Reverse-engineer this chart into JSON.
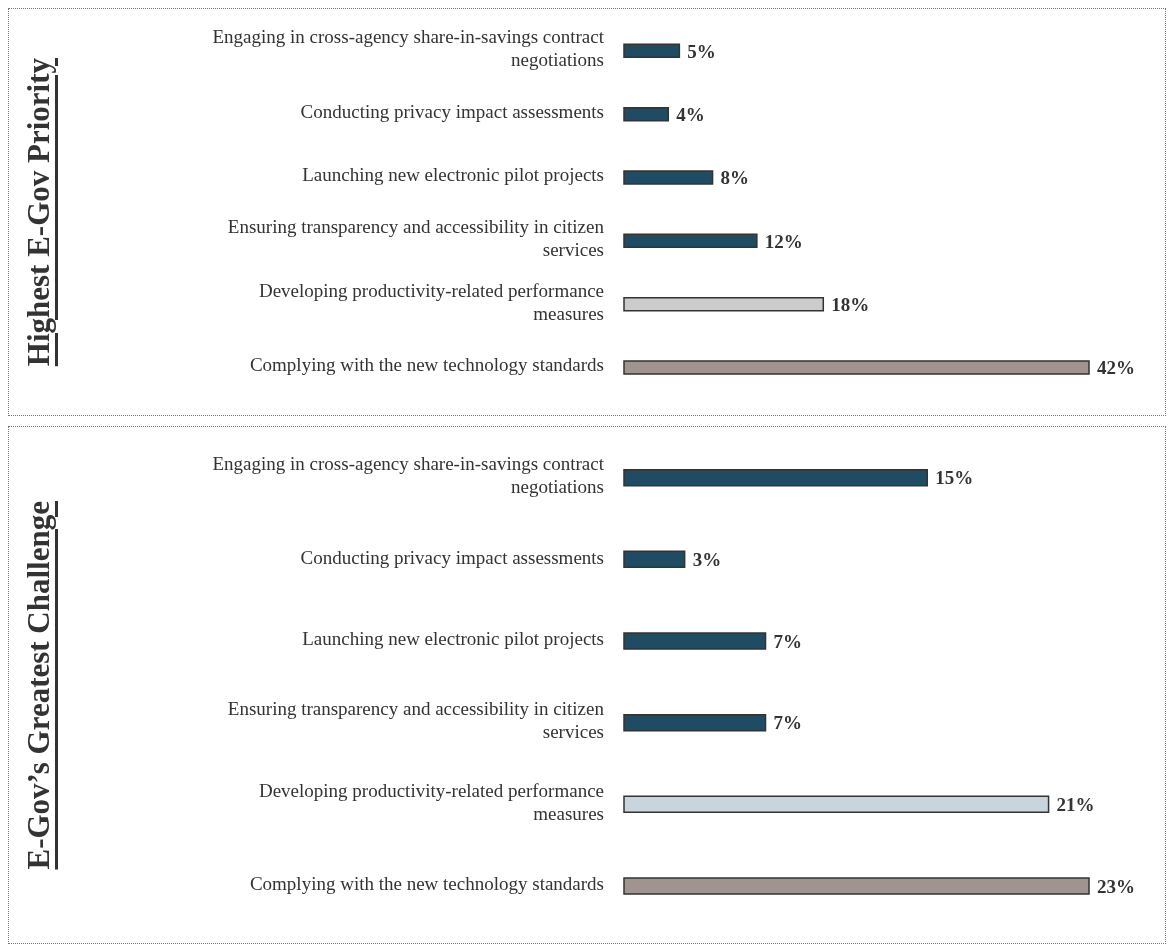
{
  "chart_data": [
    {
      "type": "bar",
      "orientation": "horizontal",
      "title": "Highest E-Gov Priority",
      "categories": [
        "Engaging in cross-agency share-in-savings contract negotiations",
        "Conducting privacy impact assessments",
        "Launching new electronic pilot projects",
        "Ensuring transparency and accessibility in citizen services",
        "Developing productivity-related performance measures",
        "Complying with the new technology standards"
      ],
      "values": [
        5,
        4,
        8,
        12,
        18,
        42
      ],
      "value_labels": [
        "5%",
        "4%",
        "8%",
        "12%",
        "18%",
        "42%"
      ],
      "colors": [
        "#1f4c63",
        "#1f4c63",
        "#1f4c63",
        "#1f4c63",
        "#cccccc",
        "#a09490"
      ]
    },
    {
      "type": "bar",
      "orientation": "horizontal",
      "title": "E-Gov’s Greatest Challenge",
      "categories": [
        "Engaging in cross-agency share-in-savings contract negotiations",
        "Conducting privacy impact assessments",
        "Launching new electronic pilot projects",
        "Ensuring transparency and accessibility in citizen services",
        "Developing productivity-related performance measures",
        "Complying with the new technology standards"
      ],
      "values": [
        15,
        3,
        7,
        7,
        21,
        23
      ],
      "value_labels": [
        "15%",
        "3%",
        "7%",
        "7%",
        "21%",
        "23%"
      ],
      "colors": [
        "#1f4c63",
        "#1f4c63",
        "#1f4c63",
        "#1f4c63",
        "#c9d5dd",
        "#a09490"
      ]
    }
  ]
}
